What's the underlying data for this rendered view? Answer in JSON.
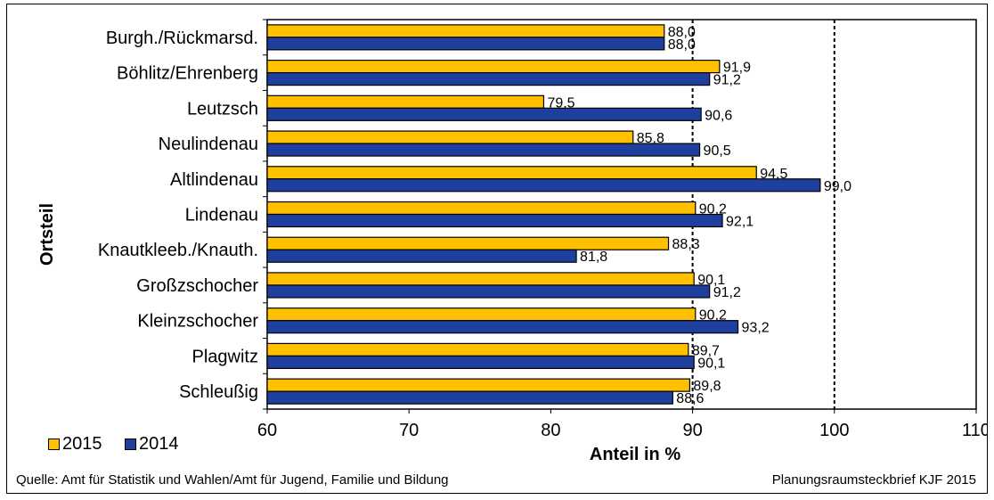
{
  "chart_data": {
    "type": "bar",
    "orientation": "horizontal",
    "categories": [
      "Burgh./Rückmarsd.",
      "Böhlitz/Ehrenberg",
      "Leutzsch",
      "Neulindenau",
      "Altlindenau",
      "Lindenau",
      "Knautkleeb./Knauth.",
      "Großzschocher",
      "Kleinzschocher",
      "Plagwitz",
      "Schleußig"
    ],
    "series": [
      {
        "name": "2015",
        "color": "#FFC000",
        "values": [
          88.0,
          91.9,
          79.5,
          85.8,
          94.5,
          90.2,
          88.3,
          90.1,
          90.2,
          89.7,
          89.8
        ],
        "labels": [
          "88,0",
          "91,9",
          "79,5",
          "85,8",
          "94,5",
          "90,2",
          "88,3",
          "90,1",
          "90,2",
          "89,7",
          "89,8"
        ]
      },
      {
        "name": "2014",
        "color": "#1F3F9F",
        "values": [
          88.0,
          91.2,
          90.6,
          90.5,
          99.0,
          92.1,
          81.8,
          91.2,
          93.2,
          90.1,
          88.6
        ],
        "labels": [
          "88,0",
          "91,2",
          "90,6",
          "90,5",
          "99,0",
          "92,1",
          "81,8",
          "91,2",
          "93,2",
          "90,1",
          "88,6"
        ]
      }
    ],
    "xlabel": "Anteil in %",
    "ylabel": "Ortsteil",
    "xlim": [
      60,
      110
    ],
    "xticks": [
      "60",
      "70",
      "80",
      "90",
      "100",
      "110"
    ],
    "reference_lines": [
      90,
      100
    ],
    "legend_position": "bottom-left"
  },
  "footer": {
    "source": "Quelle: Amt für Statistik und Wahlen/Amt für Jugend, Familie und Bildung",
    "credit": "Planungsraumsteckbrief KJF 2015"
  }
}
